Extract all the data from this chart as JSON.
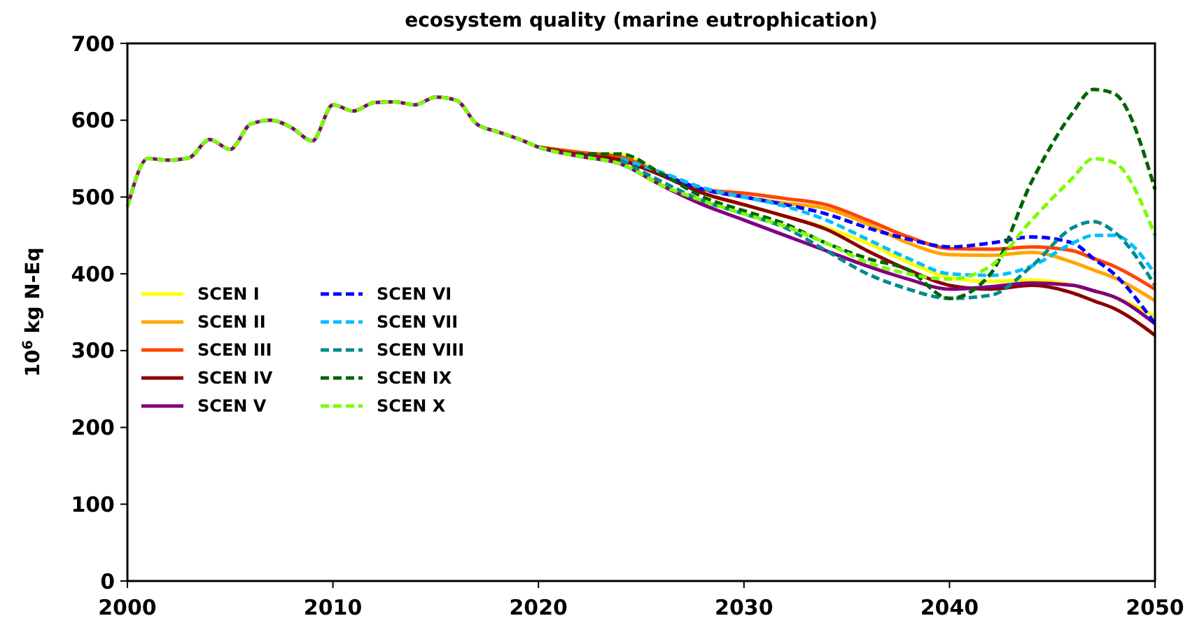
{
  "chart_data": {
    "type": "line",
    "title": "ecosystem quality (marine eutrophication)",
    "ylabel": "10$^{6}$ kg N-Eq",
    "x": [
      2000,
      2001,
      2002,
      2003,
      2004,
      2005,
      2006,
      2007,
      2008,
      2009,
      2010,
      2011,
      2012,
      2013,
      2014,
      2015,
      2016,
      2017,
      2018,
      2019,
      2020,
      2022,
      2024,
      2026,
      2028,
      2030,
      2032,
      2034,
      2036,
      2038,
      2040,
      2042,
      2044,
      2046,
      2047,
      2048,
      2050
    ],
    "xlim": [
      2000,
      2050
    ],
    "xticks": [
      2000,
      2010,
      2020,
      2030,
      2040,
      2050
    ],
    "ylim": [
      0,
      700
    ],
    "yticks": [
      0,
      100,
      200,
      300,
      400,
      500,
      600,
      700
    ],
    "legend": "bottom left",
    "series": [
      {
        "name": "SCEN I",
        "color": "#ffff00",
        "line_style": "solid",
        "values": [
          null,
          null,
          null,
          null,
          null,
          null,
          null,
          null,
          null,
          null,
          null,
          null,
          null,
          null,
          null,
          null,
          null,
          null,
          null,
          null,
          565,
          557,
          555,
          530,
          505,
          490,
          475,
          460,
          440,
          415,
          395,
          390,
          392,
          385,
          378,
          370,
          345
        ]
      },
      {
        "name": "SCEN II",
        "color": "#ffa500",
        "line_style": "solid",
        "values": [
          null,
          null,
          null,
          null,
          null,
          null,
          null,
          null,
          null,
          null,
          null,
          null,
          null,
          null,
          null,
          null,
          null,
          null,
          null,
          null,
          565,
          558,
          552,
          530,
          510,
          500,
          492,
          485,
          465,
          440,
          425,
          424,
          428,
          415,
          405,
          395,
          365
        ]
      },
      {
        "name": "SCEN III",
        "color": "#ff4500",
        "line_style": "solid",
        "values": [
          null,
          null,
          null,
          null,
          null,
          null,
          null,
          null,
          null,
          null,
          null,
          null,
          null,
          null,
          null,
          null,
          null,
          null,
          null,
          null,
          565,
          558,
          552,
          530,
          510,
          505,
          498,
          490,
          470,
          448,
          433,
          432,
          435,
          430,
          420,
          410,
          380
        ]
      },
      {
        "name": "SCEN IV",
        "color": "#8b0000",
        "line_style": "solid",
        "values": [
          null,
          null,
          null,
          null,
          null,
          null,
          null,
          null,
          null,
          null,
          null,
          null,
          null,
          null,
          null,
          null,
          null,
          null,
          null,
          null,
          565,
          555,
          548,
          528,
          505,
          490,
          475,
          458,
          430,
          405,
          385,
          380,
          385,
          375,
          365,
          355,
          320
        ]
      },
      {
        "name": "SCEN V",
        "color": "#800080",
        "line_style": "solid",
        "values": [
          487,
          550,
          548,
          551,
          575,
          562,
          595,
          600,
          590,
          573,
          620,
          612,
          623,
          624,
          620,
          630,
          626,
          595,
          585,
          576,
          565,
          553,
          543,
          515,
          490,
          470,
          450,
          430,
          410,
          393,
          380,
          383,
          388,
          385,
          378,
          370,
          335
        ]
      },
      {
        "name": "SCEN VI",
        "color": "#0000ff",
        "line_style": "dashed",
        "values": [
          null,
          null,
          null,
          null,
          null,
          null,
          null,
          null,
          null,
          null,
          null,
          null,
          null,
          null,
          null,
          null,
          null,
          null,
          null,
          null,
          null,
          null,
          null,
          530,
          510,
          500,
          490,
          478,
          460,
          445,
          435,
          440,
          448,
          440,
          420,
          400,
          335
        ]
      },
      {
        "name": "SCEN VII",
        "color": "#00bfff",
        "line_style": "dashed",
        "values": [
          null,
          null,
          null,
          null,
          null,
          null,
          null,
          null,
          null,
          null,
          null,
          null,
          null,
          null,
          null,
          null,
          null,
          null,
          null,
          null,
          null,
          null,
          550,
          532,
          512,
          500,
          488,
          470,
          445,
          420,
          400,
          398,
          410,
          440,
          450,
          450,
          400
        ]
      },
      {
        "name": "SCEN VIII",
        "color": "#008b8b",
        "line_style": "dashed",
        "values": [
          null,
          null,
          null,
          null,
          null,
          null,
          null,
          null,
          null,
          null,
          null,
          null,
          null,
          null,
          null,
          null,
          null,
          null,
          null,
          null,
          null,
          null,
          548,
          520,
          495,
          478,
          460,
          430,
          400,
          380,
          368,
          372,
          410,
          460,
          468,
          455,
          385
        ]
      },
      {
        "name": "SCEN IX",
        "color": "#006400",
        "line_style": "dashed",
        "values": [
          null,
          null,
          null,
          null,
          null,
          null,
          null,
          null,
          null,
          null,
          null,
          null,
          null,
          null,
          null,
          null,
          null,
          null,
          null,
          null,
          565,
          556,
          556,
          530,
          500,
          482,
          465,
          440,
          420,
          405,
          368,
          400,
          520,
          610,
          640,
          635,
          510
        ]
      },
      {
        "name": "SCEN X",
        "color": "#7cfc00",
        "line_style": "dashed",
        "values": [
          487,
          550,
          548,
          551,
          575,
          562,
          595,
          600,
          590,
          573,
          620,
          612,
          623,
          624,
          620,
          630,
          626,
          595,
          585,
          576,
          565,
          553,
          543,
          515,
          495,
          478,
          462,
          440,
          415,
          400,
          393,
          410,
          470,
          525,
          550,
          545,
          450
        ]
      }
    ]
  }
}
